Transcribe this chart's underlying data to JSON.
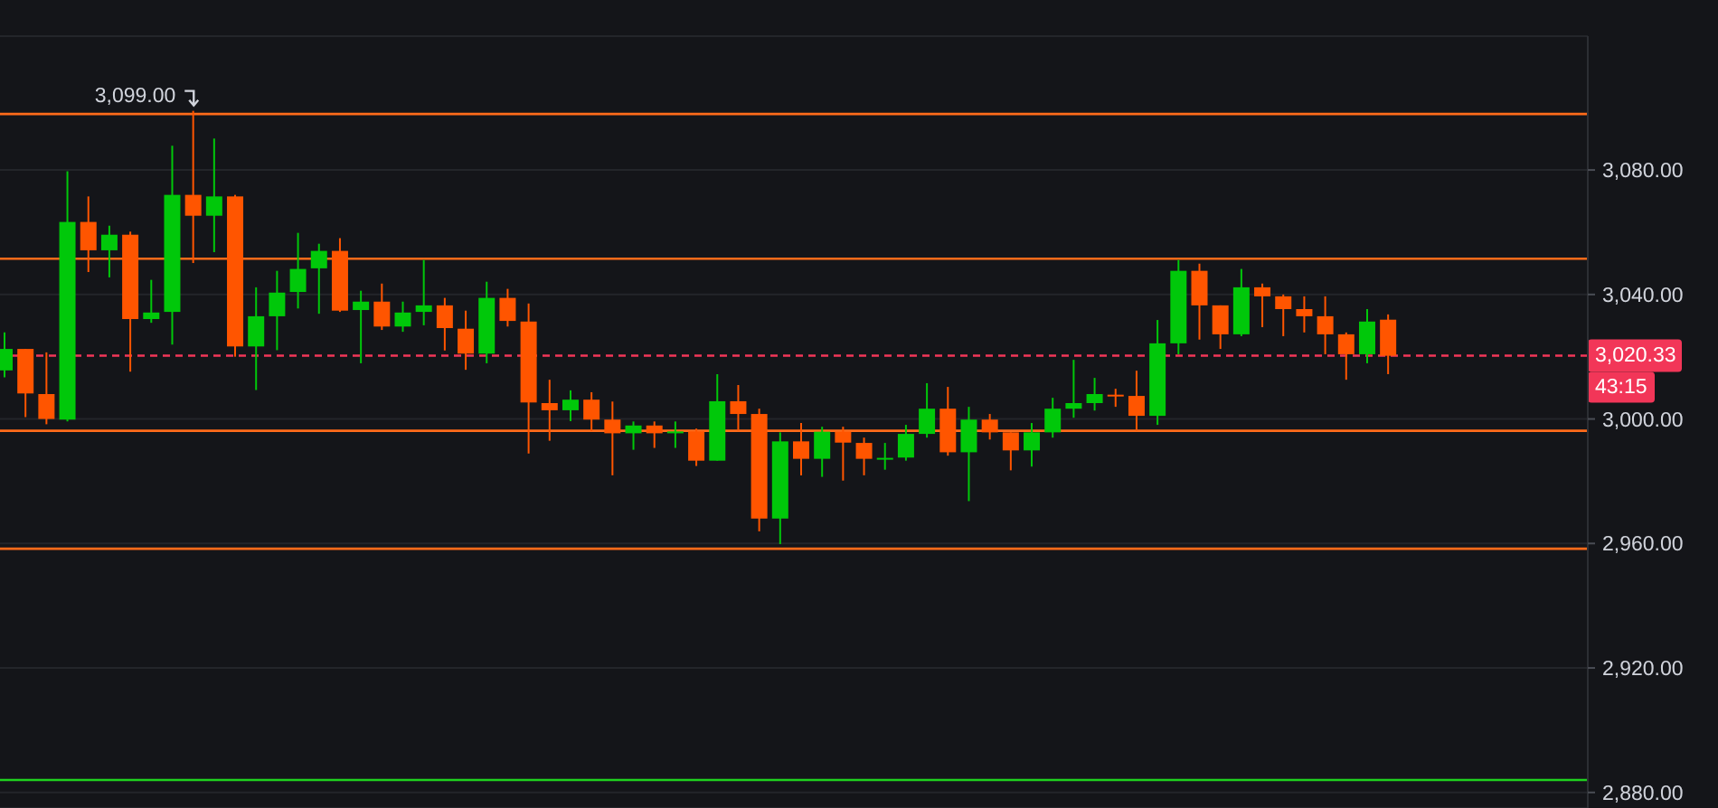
{
  "chart_data": {
    "type": "candlestick",
    "categories": [
      null,
      null,
      null,
      null,
      null,
      null,
      null,
      null,
      null,
      null,
      null,
      null,
      null,
      null,
      null,
      null,
      null,
      null,
      null,
      null,
      null,
      null,
      null,
      null,
      null,
      null,
      null,
      null,
      null,
      null,
      null,
      null,
      null,
      null,
      null,
      null,
      null,
      null,
      null,
      null,
      null,
      null,
      null,
      null,
      null,
      null,
      null,
      null,
      null,
      null,
      null,
      null,
      null,
      null,
      null,
      null,
      null,
      null,
      null,
      null,
      null,
      null,
      null,
      null,
      null,
      null,
      null,
      null,
      null,
      null,
      null,
      null,
      null,
      null,
      null,
      null
    ],
    "ohlc": [
      [
        3015.6,
        3027.8,
        3013.4,
        3022.5
      ],
      [
        3022.5,
        3022.5,
        3000.6,
        3008.2
      ],
      [
        3008.0,
        3021.4,
        2998.3,
        3000.0
      ],
      [
        2999.8,
        3079.6,
        2999.2,
        3063.3
      ],
      [
        3063.3,
        3071.5,
        3047.2,
        3054.2
      ],
      [
        3054.2,
        3062.1,
        3045.5,
        3059.2
      ],
      [
        3059.2,
        3060.2,
        3015.2,
        3032.1
      ],
      [
        3032.1,
        3044.7,
        3030.9,
        3034.2
      ],
      [
        3034.4,
        3087.8,
        3023.9,
        3072.0
      ],
      [
        3072.0,
        3099.0,
        3050.1,
        3065.3
      ],
      [
        3065.3,
        3090.1,
        3053.6,
        3071.5
      ],
      [
        3071.5,
        3072.0,
        3020.0,
        3023.3
      ],
      [
        3023.3,
        3042.3,
        3009.3,
        3033.0
      ],
      [
        3033.0,
        3047.6,
        3022.1,
        3040.6
      ],
      [
        3040.8,
        3059.8,
        3035.5,
        3048.2
      ],
      [
        3048.4,
        3056.3,
        3033.8,
        3054.0
      ],
      [
        3054.0,
        3058.1,
        3034.4,
        3034.8
      ],
      [
        3035.0,
        3041.2,
        3017.9,
        3037.7
      ],
      [
        3037.7,
        3043.5,
        3028.6,
        3029.7
      ],
      [
        3029.7,
        3037.7,
        3028.0,
        3034.2
      ],
      [
        3034.4,
        3051.1,
        3030.1,
        3036.5
      ],
      [
        3036.5,
        3038.9,
        3022.0,
        3029.2
      ],
      [
        3029.0,
        3034.8,
        3015.8,
        3021.0
      ],
      [
        3021.0,
        3044.1,
        3017.9,
        3038.9
      ],
      [
        3038.9,
        3041.8,
        3029.7,
        3031.5
      ],
      [
        3031.3,
        3037.1,
        2988.9,
        3005.3
      ],
      [
        3005.1,
        3012.6,
        2993.0,
        3002.8
      ],
      [
        3002.8,
        3009.2,
        2999.3,
        3006.2
      ],
      [
        3006.2,
        3008.6,
        2996.1,
        2999.8
      ],
      [
        2999.8,
        3005.6,
        2981.9,
        2995.4
      ],
      [
        2995.4,
        2999.2,
        2990.1,
        2997.9
      ],
      [
        2997.9,
        2999.2,
        2990.7,
        2995.4
      ],
      [
        2995.4,
        2999.2,
        2990.7,
        2996.0
      ],
      [
        2996.0,
        2996.9,
        2984.9,
        2986.6
      ],
      [
        2986.6,
        3014.4,
        2986.6,
        3005.7
      ],
      [
        3005.7,
        3010.9,
        2996.3,
        3001.6
      ],
      [
        3001.6,
        3003.3,
        2963.9,
        2968.0
      ],
      [
        2968.0,
        2995.7,
        2959.8,
        2992.8
      ],
      [
        2992.8,
        2998.7,
        2981.9,
        2987.2
      ],
      [
        2987.2,
        2997.5,
        2981.4,
        2995.9
      ],
      [
        2995.9,
        2997.5,
        2980.2,
        2992.4
      ],
      [
        2992.3,
        2994.0,
        2981.9,
        2987.2
      ],
      [
        2987.4,
        2992.3,
        2983.7,
        2987.5
      ],
      [
        2987.6,
        2998.1,
        2986.6,
        2995.2
      ],
      [
        2995.2,
        3011.5,
        2994.0,
        3003.3
      ],
      [
        3003.3,
        3010.3,
        2988.2,
        2989.3
      ],
      [
        2989.3,
        3003.9,
        2973.6,
        2999.8
      ],
      [
        2999.8,
        3001.6,
        2993.4,
        2995.7
      ],
      [
        2995.7,
        2995.7,
        2983.5,
        2989.9
      ],
      [
        2989.9,
        2998.7,
        2984.7,
        2995.7
      ],
      [
        2995.7,
        3006.8,
        2994.0,
        3003.3
      ],
      [
        3003.3,
        3019.0,
        3000.4,
        3005.1
      ],
      [
        3005.1,
        3013.2,
        3002.7,
        3008.0
      ],
      [
        3007.8,
        3009.7,
        3003.9,
        3007.6
      ],
      [
        3007.4,
        3015.5,
        2996.3,
        3001.0
      ],
      [
        3001.0,
        3031.8,
        2998.1,
        3024.3
      ],
      [
        3024.3,
        3051.1,
        3020.8,
        3047.6
      ],
      [
        3047.6,
        3049.9,
        3025.5,
        3036.5
      ],
      [
        3036.5,
        3036.5,
        3022.5,
        3027.2
      ],
      [
        3027.2,
        3048.2,
        3026.6,
        3042.3
      ],
      [
        3042.3,
        3043.5,
        3029.5,
        3039.4
      ],
      [
        3039.4,
        3040.0,
        3026.6,
        3035.3
      ],
      [
        3035.3,
        3039.4,
        3027.8,
        3033.0
      ],
      [
        3033.0,
        3039.4,
        3020.8,
        3027.2
      ],
      [
        3027.2,
        3027.8,
        3012.6,
        3020.8
      ],
      [
        3020.8,
        3035.3,
        3017.9,
        3031.3
      ],
      [
        3031.9,
        3033.6,
        3014.4,
        3020.3
      ],
      null,
      null,
      null,
      null,
      null,
      null,
      null,
      null,
      null
    ],
    "colors": [
      "#00c80a",
      "#ff5500",
      "#ff5500",
      "#00c80a",
      "#ff5500",
      "#00c80a",
      "#ff5500",
      "#00c80a",
      "#00c80a",
      "#ff5500",
      "#00c80a",
      "#ff5500",
      "#00c80a",
      "#00c80a",
      "#00c80a",
      "#00c80a",
      "#ff5500",
      "#00c80a",
      "#ff5500",
      "#00c80a",
      "#00c80a",
      "#ff5500",
      "#ff5500",
      "#00c80a",
      "#ff5500",
      "#ff5500",
      "#ff5500",
      "#00c80a",
      "#ff5500",
      "#ff5500",
      "#00c80a",
      "#ff5500",
      "#00c80a",
      "#ff5500",
      "#00c80a",
      "#ff5500",
      "#ff5500",
      "#00c80a",
      "#ff5500",
      "#00c80a",
      "#ff5500",
      "#ff5500",
      "#00c80a",
      "#00c80a",
      "#00c80a",
      "#ff5500",
      "#00c80a",
      "#ff5500",
      "#ff5500",
      "#00c80a",
      "#00c80a",
      "#00c80a",
      "#00c80a",
      "#ff5500",
      "#ff5500",
      "#00c80a",
      "#00c80a",
      "#ff5500",
      "#ff5500",
      "#00c80a",
      "#ff5500",
      "#ff5500",
      "#ff5500",
      "#ff5500",
      "#ff5500",
      "#00c80a",
      "#ff5500",
      null,
      null,
      null,
      null,
      null,
      null,
      null,
      null,
      null
    ],
    "ylim": [
      2875,
      3123
    ],
    "yticks": [
      {
        "value": 2880,
        "label": "2,880.00"
      },
      {
        "value": 2920,
        "label": "2,920.00"
      },
      {
        "value": 2960,
        "label": "2,960.00"
      },
      {
        "value": 3000,
        "label": "3,000.00"
      },
      {
        "value": 3040,
        "label": "3,040.00"
      },
      {
        "value": 3080,
        "label": "3,080.00"
      }
    ],
    "grid": "y",
    "tick_labels": "y",
    "ref_lines": [
      {
        "axis": "y",
        "value": 3098,
        "color": "#ff6b1a"
      },
      {
        "axis": "y",
        "value": 3051.5,
        "color": "#ff6b1a"
      },
      {
        "axis": "y",
        "value": 2996.2,
        "color": "#ff6b1a"
      },
      {
        "axis": "y",
        "value": 2958.3,
        "color": "#ff6b1a"
      },
      {
        "axis": "y",
        "value": 2884,
        "color": "#1fd11f"
      },
      {
        "axis": "y",
        "value": 3020.33,
        "label": "3,020.33",
        "color": "#f23658",
        "line_style": "dashed"
      }
    ],
    "annotations": [
      {
        "text": "3,099.00",
        "y": 3099
      },
      "43:15"
    ]
  }
}
